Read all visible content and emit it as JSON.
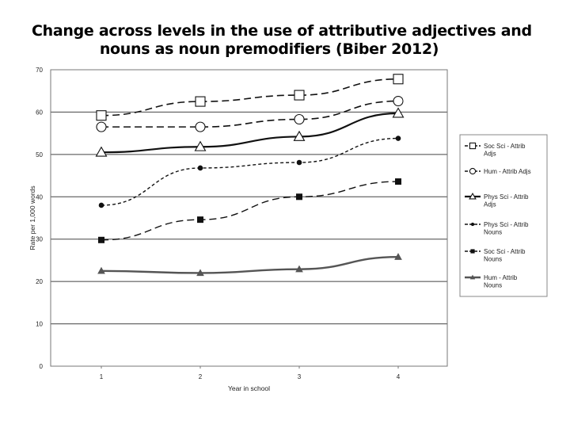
{
  "slide": {
    "title_line1": "Change across levels in the use of attributive adjectives and",
    "title_line2": "nouns as noun premodifiers (Biber 2012)"
  },
  "chart_data": {
    "type": "line",
    "xlabel": "Year in school",
    "ylabel": "Rate per 1,000 words",
    "categories": [
      "1",
      "2",
      "3",
      "4"
    ],
    "ylim": [
      0,
      70
    ],
    "yticks": [
      0,
      10,
      20,
      30,
      40,
      50,
      60,
      70
    ],
    "grid": true,
    "legend_position": "right",
    "series": [
      {
        "name": "Soc Sci - Attrib Adjs",
        "legend_lines": [
          "Soc Sci - Attrib",
          "Adjs"
        ],
        "values": [
          59.2,
          62.5,
          64.0,
          67.8
        ],
        "marker": "square-open",
        "line": "dash-long",
        "width": 1.6
      },
      {
        "name": "Hum - Attrib Adjs",
        "legend_lines": [
          "Hum - Attrib Adjs"
        ],
        "values": [
          56.5,
          56.5,
          58.3,
          62.6
        ],
        "marker": "circle-open",
        "line": "dash-long",
        "width": 1.6
      },
      {
        "name": "Phys Sci - Attrib Adjs",
        "legend_lines": [
          "Phys Sci - Attrib",
          "Adjs"
        ],
        "values": [
          50.5,
          51.8,
          54.2,
          59.7
        ],
        "marker": "triangle-open",
        "line": "solid",
        "width": 2.2
      },
      {
        "name": "Phys Sci - Attrib Nouns",
        "legend_lines": [
          "Phys Sci - Attrib",
          "Nouns"
        ],
        "values": [
          38.0,
          46.8,
          48.1,
          53.8
        ],
        "marker": "circle-filled",
        "line": "dash-short",
        "width": 1.4
      },
      {
        "name": "Soc Sci - Attrib Nouns",
        "legend_lines": [
          "Soc Sci - Attrib",
          "Nouns"
        ],
        "values": [
          29.8,
          34.6,
          40.0,
          43.6
        ],
        "marker": "square-filled",
        "line": "dash-long",
        "width": 1.4
      },
      {
        "name": "Hum - Attrib Nouns",
        "legend_lines": [
          "Hum - Attrib",
          "Nouns"
        ],
        "values": [
          22.5,
          22.0,
          22.9,
          25.8
        ],
        "marker": "triangle-filled",
        "line": "solid",
        "width": 2.4,
        "color": "#555555"
      }
    ]
  },
  "colors": {
    "line": "#111111",
    "grid": "#444444",
    "frame": "#777777"
  }
}
